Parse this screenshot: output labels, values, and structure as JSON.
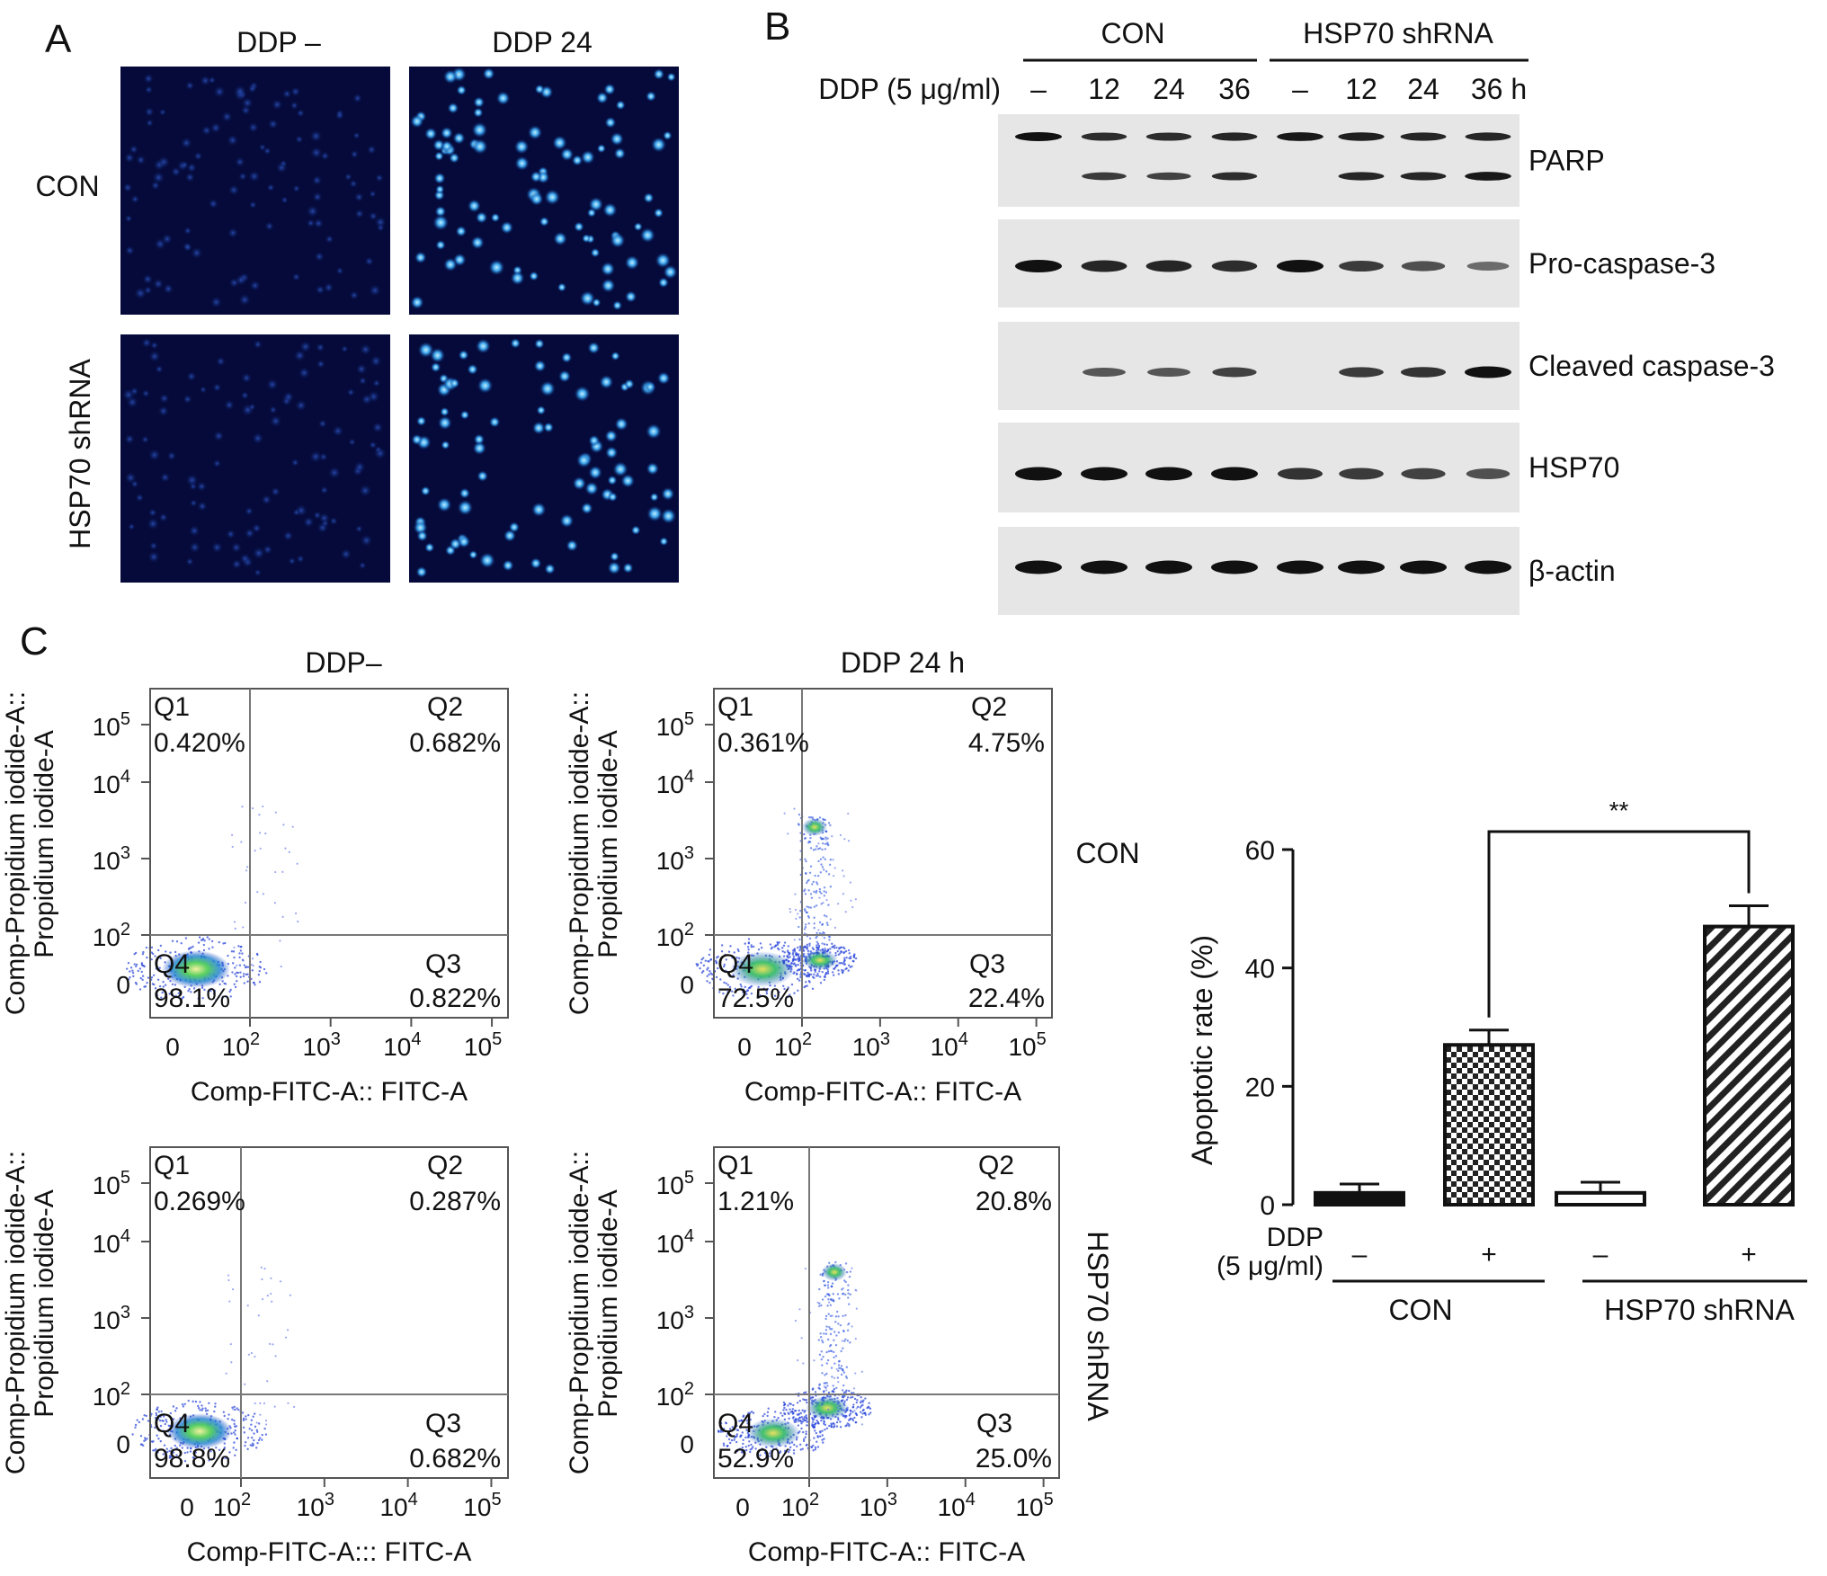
{
  "panelA": {
    "letter": "A",
    "col_labels": [
      "DDP –",
      "DDP 24"
    ],
    "row_labels": [
      "CON",
      "HSP70 shRNA"
    ]
  },
  "panelB": {
    "letter": "B",
    "groups": [
      "CON",
      "HSP70 shRNA"
    ],
    "treatment_label": "DDP (5 μg/ml)",
    "lanes": [
      "–",
      "12",
      "24",
      "36",
      "–",
      "12",
      "24",
      "36 h"
    ],
    "proteins": [
      "PARP",
      "Pro-caspase-3",
      "Cleaved caspase-3",
      "HSP70",
      "β-actin"
    ],
    "band_intensity": {
      "PARP_full": [
        1,
        0.8,
        0.8,
        0.85,
        0.95,
        0.9,
        0.85,
        0.85
      ],
      "PARP_cleaved": [
        0,
        0.7,
        0.65,
        0.8,
        0,
        0.85,
        0.85,
        0.95
      ],
      "Pro-caspase-3": [
        1,
        0.85,
        0.85,
        0.8,
        1,
        0.7,
        0.55,
        0.35
      ],
      "Cleaved caspase-3": [
        0,
        0.5,
        0.5,
        0.65,
        0,
        0.7,
        0.75,
        1
      ],
      "HSP70": [
        1,
        1,
        1,
        1,
        0.75,
        0.7,
        0.65,
        0.55
      ],
      "beta-actin": [
        1,
        1,
        1,
        1,
        1,
        1,
        1,
        1
      ]
    }
  },
  "panelC": {
    "letter": "C",
    "col_titles": [
      "DDP–",
      "DDP 24 h"
    ],
    "row_labels": [
      "CON",
      "HSP70 shRNA"
    ],
    "y_axis_label_1": "Comp-Propidium iodide-A::",
    "y_axis_label_2": "Propidium iodide-A",
    "x_axis_label_1": "Comp-FITC-A:: FITC-A",
    "x_axis_label_2": "Comp-FITC-A::: FITC-A",
    "tick_zero": "0",
    "tick_base": "10",
    "tick_exps": [
      "2",
      "3",
      "4",
      "5"
    ],
    "quadrant_names": [
      "Q1",
      "Q2",
      "Q3",
      "Q4"
    ],
    "plots": [
      {
        "q1": "0.420%",
        "q2": "0.682%",
        "q3": "0.822%",
        "q4": "98.1%"
      },
      {
        "q1": "0.361%",
        "q2": "4.75%",
        "q3": "22.4%",
        "q4": "72.5%"
      },
      {
        "q1": "0.269%",
        "q2": "0.287%",
        "q3": "0.682%",
        "q4": "98.8%"
      },
      {
        "q1": "1.21%",
        "q2": "20.8%",
        "q3": "25.0%",
        "q4": "52.9%"
      }
    ]
  },
  "chart_data": {
    "type": "bar",
    "ylabel": "Apoptotic rate (%)",
    "ylim": [
      0,
      60
    ],
    "yticks": [
      "0",
      "20",
      "40",
      "60"
    ],
    "categories": [
      "–",
      "+",
      "–",
      "+"
    ],
    "treatment_label_1": "DDP",
    "treatment_label_2": "(5 μg/ml)",
    "groups": [
      "CON",
      "HSP70 shRNA"
    ],
    "values": [
      2.0,
      27.0,
      2.0,
      47.0
    ],
    "errors": [
      1.5,
      2.5,
      1.8,
      3.5
    ],
    "fills": [
      "solid-black",
      "checkered",
      "white",
      "diagonal-stripes"
    ],
    "significance": "**"
  }
}
